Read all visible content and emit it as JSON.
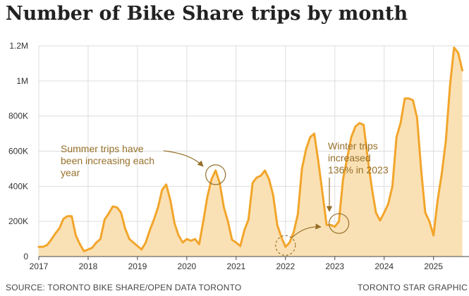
{
  "chart_data": {
    "type": "area",
    "title": "Number of Bike Share trips by month",
    "xlabel": "",
    "ylabel": "",
    "ylim": [
      0,
      1200000
    ],
    "y_ticks": [
      0,
      200000,
      400000,
      600000,
      800000,
      1000000,
      1200000
    ],
    "y_tick_labels": [
      "0",
      "200K",
      "400K",
      "600K",
      "800K",
      "1M",
      "1.2M"
    ],
    "x_tick_labels": [
      "2017",
      "2018",
      "2019",
      "2020",
      "2021",
      "2022",
      "2023",
      "2024",
      "2025"
    ],
    "grid": true,
    "start": "2017-01",
    "series": [
      {
        "name": "Bike Share trips",
        "values": [
          55000,
          55000,
          65000,
          95000,
          130000,
          160000,
          215000,
          230000,
          230000,
          120000,
          70000,
          30000,
          40000,
          50000,
          80000,
          100000,
          210000,
          245000,
          285000,
          280000,
          250000,
          160000,
          100000,
          80000,
          60000,
          40000,
          80000,
          150000,
          210000,
          280000,
          380000,
          410000,
          320000,
          190000,
          120000,
          80000,
          100000,
          90000,
          100000,
          70000,
          200000,
          340000,
          440000,
          490000,
          420000,
          280000,
          200000,
          95000,
          80000,
          60000,
          150000,
          210000,
          420000,
          450000,
          460000,
          490000,
          440000,
          350000,
          180000,
          110000,
          55000,
          80000,
          140000,
          240000,
          500000,
          610000,
          680000,
          700000,
          540000,
          360000,
          180000,
          180000,
          170000,
          200000,
          440000,
          560000,
          680000,
          740000,
          760000,
          750000,
          560000,
          390000,
          250000,
          205000,
          250000,
          300000,
          400000,
          680000,
          760000,
          900000,
          900000,
          890000,
          790000,
          490000,
          250000,
          200000,
          120000,
          320000,
          470000,
          660000,
          970000,
          1190000,
          1160000,
          1060000
        ]
      }
    ],
    "annotations": [
      {
        "id": "summer",
        "lines": [
          "Summer trips have",
          "been increasing each",
          "year"
        ]
      },
      {
        "id": "winter",
        "lines": [
          "Winter trips",
          "increased",
          "136% in 2023"
        ]
      }
    ]
  },
  "footer": {
    "source": "SOURCE: TORONTO BIKE SHARE/OPEN DATA TORONTO",
    "credit": "TORONTO STAR GRAPHIC"
  },
  "colors": {
    "line": "#f2a52b",
    "fill": "#fae1b5",
    "annotation": "#96702a",
    "grid": "#dddddd",
    "axis": "#444444"
  }
}
